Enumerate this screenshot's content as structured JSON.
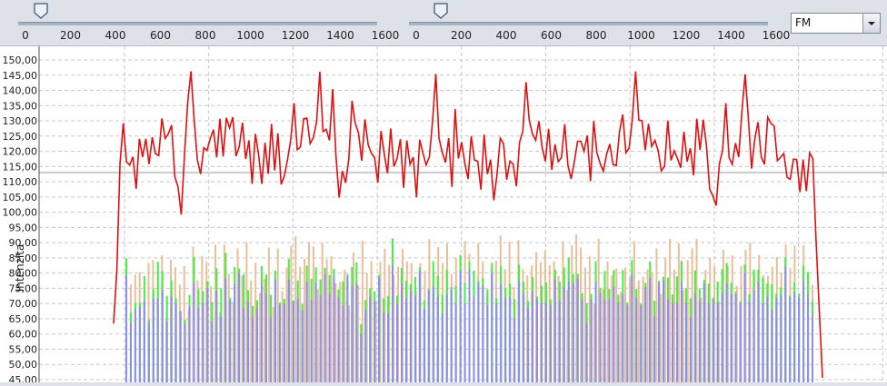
{
  "slider_left": {
    "ticks": [
      "0",
      "200",
      "400",
      "600",
      "800",
      "1000",
      "1200",
      "1400",
      "1600"
    ],
    "value": 70
  },
  "slider_right": {
    "ticks": [
      "0",
      "200",
      "400",
      "600",
      "800",
      "1000",
      "1200",
      "1400",
      "1600"
    ],
    "value": 110
  },
  "mode_select": {
    "value": "FM"
  },
  "chart_data": {
    "type": "bar",
    "ylabel": "Intenzita",
    "ylim": [
      45,
      152
    ],
    "yticks": [
      "45,00",
      "50,00",
      "55,00",
      "60,00",
      "65,00",
      "70,00",
      "75,00",
      "80,00",
      "85,00",
      "90,00",
      "95,00",
      "100,00",
      "105,00",
      "110,00",
      "115,00",
      "120,00",
      "125,00",
      "130,00",
      "135,00",
      "140,00",
      "145,00",
      "150,00"
    ],
    "grid": true,
    "reference_line": 113,
    "x_count": 155,
    "colors": {
      "line": "#e01010",
      "blue": "#8a8ef4",
      "green": "#44ee44",
      "tan": "#e8bf99",
      "grid": "#c8c8c8"
    },
    "series": [
      {
        "type": "line",
        "values": [
          63.4,
          80.8,
          116.2,
          129.2,
          116.5,
          115.5,
          118.2,
          107.7,
          124.1,
          118.1,
          124.1,
          115.8,
          124.6,
          119.2,
          118.6,
          130.8,
          124.2,
          125.8,
          128.6,
          111.7,
          108.3,
          99.2,
          118.7,
          136.1,
          146.3,
          130.3,
          117.2,
          112.5,
          121.2,
          120.3,
          124.2,
          127.1,
          118.0,
          130.7,
          118.3,
          131.0,
          127.7,
          131.2,
          118.4,
          121.6,
          129.4,
          117.5,
          123.6,
          109.3,
          125.7,
          118.9,
          109.3,
          122.8,
          112.6,
          129.0,
          113.7,
          125.9,
          109.1,
          111.9,
          117.4,
          124.0,
          135.8,
          120.5,
          121.4,
          130.7,
          130.9,
          122.5,
          124.5,
          129.7,
          146.1,
          126.5,
          127.2,
          123.6,
          140.4,
          118.6,
          104.8,
          113.5,
          109.6,
          117.4,
          136.6,
          129.2,
          126.1,
          116.9,
          130.5,
          122.2,
          119.3,
          117.9,
          109.7,
          126.7,
          119.1,
          112.8,
          127.5,
          115.0,
          117.7,
          124.0,
          108.0,
          123.6,
          115.7,
          118.1,
          104.9,
          123.8,
          119.4,
          115.5,
          118.2,
          130.0,
          145.4,
          124.2,
          119.6,
          116.3,
          124.3,
          108.3,
          133.9,
          117.6,
          123.0,
          116.1,
          110.9,
          125.0,
          117.1,
          116.7,
          107.4,
          125.5,
          112.5,
          117.3,
          103.9,
          112.5,
          124.3,
          122.6,
          110.7,
          116.8,
          115.8,
          108.5,
          123.0,
          126.6,
          142.7,
          130.1,
          125.7,
          123.6,
          129.9,
          121.2,
          116.7,
          127.4,
          113.9,
          122.3,
          116.6,
          117.9,
          128.9,
          115.4,
          110.9,
          116.6,
          123.3,
          123.3,
          120.0,
          125.2,
          110.2,
          129.9,
          119.5,
          116.0,
          113.5,
          119.0,
          122.4,
          115.7,
          115.3,
          126.4,
          132.1,
          119.5,
          121.1,
          130.7,
          146.2,
          130.3,
          130.0,
          120.4,
          129.0,
          121.6,
          123.6,
          120.2,
          113.6,
          115.1,
          130.1,
          117.0,
          120.2,
          117.6,
          114.6,
          126.4,
          116.6,
          121.0,
          112.1,
          130.7,
          120.4,
          130.4,
          121.8,
          107.5,
          105.3,
          102.2,
          115.8,
          120.3,
          135.8,
          118.0,
          115.7,
          122.7,
          118.1,
          133.1,
          145.3,
          130.8,
          114.3,
          124.1,
          129.6,
          118.1,
          115.7,
          131.2,
          129.2,
          128.3,
          116.9,
          118.0,
          119.3,
          111.5,
          110.8,
          117.4,
          117.3,
          106.6,
          117.3,
          106.9,
          119.5,
          117.6,
          90.9,
          68.1,
          45.6
        ]
      },
      {
        "type": "bar",
        "name": "tan",
        "values": [
          80.8,
          76.2,
          79.5,
          80.2,
          70.6,
          83.3,
          84.3,
          71.6,
          85.8,
          65.4,
          84.4,
          82.0,
          76.2,
          82.3,
          67.9,
          88.7,
          77.6,
          85.6,
          83.7,
          75.7,
          89.4,
          67.1,
          89.3,
          79.7,
          70.5,
          88.2,
          79.1,
          90.1,
          77.6,
          83.4,
          73.5,
          78.1,
          88.4,
          68.9,
          88.1,
          74.1,
          81.8,
          89.0,
          92.1,
          82.1,
          84.7,
          90.2,
          88.7,
          74.8,
          89.9,
          84.5,
          85.6,
          76.7,
          77.2,
          81.1,
          69.4,
          86.7,
          75.9,
          90.6,
          79.9,
          84.0,
          70.8,
          83.7,
          88.0,
          82.8,
          79.3,
          82.1,
          88.0,
          83.8,
          83.3,
          74.2,
          83.2,
          80.7,
          91.2,
          79.8,
          88.5,
          83.3,
          89.8,
          79.6,
          84.9,
          85.7,
          90.5,
          86.3,
          80.4,
          89.8,
          83.8,
          72.9,
          81.8,
          84.1,
          92.3,
          81.3,
          90.3,
          75.5,
          90.8,
          81.4,
          79.2,
          82.6,
          86.8,
          83.6,
          87.5,
          82.6,
          83.9,
          79.1,
          90.5,
          74.4,
          89.2,
          92.7,
          88.4,
          81.8,
          85.5,
          69.7,
          91.3,
          74.8,
          83.8,
          79.2,
          81.5,
          73.8,
          81.8,
          78.7,
          90.5,
          77.6,
          78.8,
          81.2,
          80.3,
          88.1,
          73.2,
          84.9,
          91.2,
          81.1,
          89.8,
          74.5,
          84.3,
          88.2,
          91.2,
          71.9,
          81.1,
          85.1,
          82.3,
          70.8,
          87.7,
          82.3,
          85.8,
          75.8,
          82.4,
          87.6,
          90.1,
          80.3,
          85.9,
          79.3,
          79.1,
          82.1,
          85.3,
          80.2,
          89.4,
          81.7,
          89.0,
          71.6,
          89.2,
          72.3,
          76.1
        ]
      },
      {
        "type": "bar",
        "name": "green",
        "values": [
          84.9,
          67.0,
          70.2,
          70.3,
          79.0,
          64.7,
          74.8,
          83.7,
          80.6,
          72.5,
          77.6,
          71.6,
          67.7,
          64.7,
          72.8,
          85.3,
          74.7,
          74.0,
          77.3,
          70.5,
          81.6,
          75.0,
          86.6,
          71.9,
          82.0,
          81.5,
          79.6,
          74.4,
          69.2,
          71.1,
          82.3,
          79.5,
          72.9,
          80.8,
          70.3,
          71.5,
          84.7,
          71.1,
          77.6,
          69.8,
          82.5,
          78.2,
          81.9,
          77.9,
          81.7,
          79.4,
          81.4,
          74.6,
          77.3,
          79.6,
          82.0,
          83.5,
          63.2,
          71.2,
          75.0,
          74.0,
          79.4,
          71.7,
          72.5,
          91.4,
          72.6,
          81.7,
          77.5,
          76.4,
          78.7,
          81.9,
          71.0,
          74.8,
          83.9,
          79.2,
          72.9,
          81.1,
          75.4,
          75.8,
          86.0,
          76.7,
          83.8,
          80.8,
          77.4,
          78.3,
          74.7,
          83.4,
          71.9,
          82.3,
          75.0,
          76.5,
          71.4,
          82.8,
          77.1,
          70.8,
          78.7,
          72.3,
          75.8,
          76.9,
          71.4,
          81.1,
          77.1,
          81.8,
          85.0,
          79.6,
          79.8,
          73.4,
          70.1,
          73.2,
          83.9,
          75.0,
          80.7,
          74.8,
          81.0,
          72.9,
          81.0,
          70.4,
          84.3,
          74.8,
          70.0,
          76.8,
          83.8,
          70.9,
          77.5,
          78.8,
          78.5,
          73.0,
          78.9,
          84.0,
          75.0,
          71.7,
          80.9,
          75.0,
          77.8,
          76.5,
          71.9,
          77.2,
          81.3,
          83.3,
          76.8,
          73.9,
          70.7,
          82.8,
          73.1,
          81.1,
          81.1,
          78.5,
          76.6,
          76.3,
          73.2,
          75.3,
          85.1,
          72.6,
          77.0,
          73.3,
          82.5,
          80.4,
          70.8
        ]
      },
      {
        "type": "bar",
        "name": "blue",
        "values": [
          79.2,
          63.6,
          68.2,
          68.9,
          70.8,
          63.8,
          71.8,
          71.6,
          74.3,
          64.1,
          72.2,
          70.4,
          67.4,
          63.2,
          69.2,
          76.6,
          68.7,
          70.4,
          75.1,
          64.1,
          74.1,
          65.7,
          78.3,
          71.1,
          76.5,
          79.9,
          68.5,
          70.6,
          65.7,
          68.5,
          76.1,
          73.2,
          65.4,
          78.0,
          69.6,
          70.0,
          77.8,
          70.8,
          71.5,
          67.8,
          77.2,
          71.2,
          76.9,
          72.6,
          79.6,
          73.3,
          79.2,
          72.0,
          69.4,
          78.8,
          75.9,
          76.5,
          60.0,
          68.1,
          72.1,
          70.7,
          78.6,
          67.1,
          66.7,
          82.5,
          69.7,
          76.6,
          71.7,
          74.1,
          72.6,
          80.7,
          68.2,
          74.3,
          75.5,
          72.3,
          66.7,
          73.1,
          74.8,
          70.3,
          80.8,
          69.9,
          81.1,
          72.4,
          76.8,
          76.0,
          69.4,
          79.9,
          70.1,
          76.2,
          72.0,
          72.2,
          65.4,
          77.4,
          73.0,
          68.5,
          74.0,
          71.5,
          70.2,
          70.4,
          69.4,
          77.8,
          71.0,
          75.2,
          77.2,
          76.7,
          78.4,
          71.3,
          63.5,
          71.3,
          77.2,
          73.6,
          71.3,
          71.5,
          75.6,
          70.3,
          73.0,
          69.6,
          79.5,
          71.8,
          69.5,
          75.3,
          78.4,
          65.9,
          76.9,
          77.7,
          71.3,
          70.1,
          70.1,
          77.2,
          70.3,
          65.6,
          73.4,
          71.0,
          76.5,
          70.1,
          71.3,
          70.2,
          73.4,
          76.6,
          73.0,
          73.2,
          70.1,
          80.1,
          70.8,
          74.4,
          77.0,
          70.0,
          72.2,
          67.9,
          71.8,
          72.8,
          82.2,
          72.2,
          73.6,
          72.1,
          77.6,
          72.9,
          66.4
        ]
      }
    ]
  }
}
